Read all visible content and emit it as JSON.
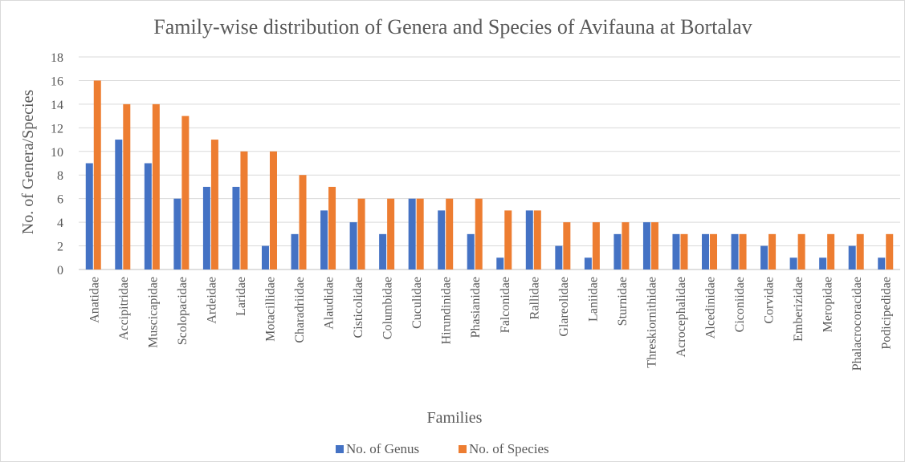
{
  "chart_data": {
    "type": "bar",
    "title": "Family-wise distribution of Genera and Species of Avifauna at Bortalav",
    "xlabel": "Families",
    "ylabel": "No. of Genera/Species",
    "ylim": [
      0,
      18
    ],
    "yticks": [
      0,
      2,
      4,
      6,
      8,
      10,
      12,
      14,
      16,
      18
    ],
    "grid": true,
    "legend_position": "bottom",
    "categories": [
      "Anatidae",
      "Accipitridae",
      "Muscicapidae",
      "Scolopacidae",
      "Ardeidae",
      "Laridae",
      "Motacillidae",
      "Charadriidae",
      "Alaudidae",
      "Cisticolidae",
      "Columbidae",
      "Cuculidae",
      "Hirundinidae",
      "Phasianidae",
      "Falconidae",
      "Rallidae",
      "Glareolidae",
      "Laniidae",
      "Sturnidae",
      "Threskiornithidae",
      "Acrocephalidae",
      "Alcedinidae",
      "Ciconiidae",
      "Corvidae",
      "Emberizidae",
      "Meropidae",
      "Phalacrocoracidae",
      "Podicipedidae"
    ],
    "series": [
      {
        "name": "No. of Genus",
        "color": "#4472c4",
        "values": [
          9,
          11,
          9,
          6,
          7,
          7,
          2,
          3,
          5,
          4,
          3,
          6,
          5,
          3,
          1,
          5,
          2,
          1,
          3,
          4,
          3,
          3,
          3,
          2,
          1,
          1,
          2,
          1
        ]
      },
      {
        "name": "No. of Species",
        "color": "#ed7d31",
        "values": [
          16,
          14,
          14,
          13,
          11,
          10,
          10,
          8,
          7,
          6,
          6,
          6,
          6,
          6,
          5,
          5,
          4,
          4,
          4,
          4,
          3,
          3,
          3,
          3,
          3,
          3,
          3,
          3
        ]
      }
    ]
  }
}
